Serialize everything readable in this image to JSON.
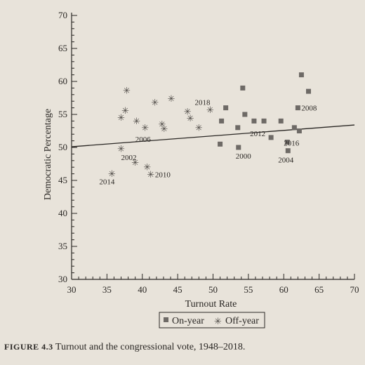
{
  "caption": {
    "figure_label": "FIGURE 4.3",
    "text": "Turnout and the congressional vote, 1948–2018."
  },
  "chart_data": {
    "type": "scatter",
    "xlabel": "Turnout Rate",
    "ylabel": "Democratic Percentage",
    "xlim": [
      30,
      70
    ],
    "ylim": [
      30,
      70
    ],
    "x_ticks": [
      30,
      35,
      40,
      45,
      50,
      55,
      60,
      65,
      70
    ],
    "y_ticks": [
      30,
      35,
      40,
      45,
      50,
      55,
      60,
      65,
      70
    ],
    "legend": {
      "position": "bottom-center",
      "entries": [
        "On-year",
        "Off-year"
      ]
    },
    "series": [
      {
        "name": "On-year",
        "marker": "square",
        "points": [
          {
            "x": 51.0,
            "y": 50.5,
            "label": ""
          },
          {
            "x": 51.2,
            "y": 54.0,
            "label": ""
          },
          {
            "x": 51.8,
            "y": 56.0,
            "label": ""
          },
          {
            "x": 53.5,
            "y": 53.0,
            "label": ""
          },
          {
            "x": 53.6,
            "y": 50.0,
            "label": "2000"
          },
          {
            "x": 54.2,
            "y": 59.0,
            "label": ""
          },
          {
            "x": 54.5,
            "y": 55.0,
            "label": ""
          },
          {
            "x": 55.8,
            "y": 54.0,
            "label": ""
          },
          {
            "x": 57.2,
            "y": 54.0,
            "label": ""
          },
          {
            "x": 58.2,
            "y": 51.5,
            "label": "2012"
          },
          {
            "x": 59.6,
            "y": 54.0,
            "label": ""
          },
          {
            "x": 60.5,
            "y": 50.8,
            "label": "2016"
          },
          {
            "x": 60.6,
            "y": 49.5,
            "label": "2004"
          },
          {
            "x": 61.5,
            "y": 53.0,
            "label": ""
          },
          {
            "x": 62.2,
            "y": 52.5,
            "label": ""
          },
          {
            "x": 62.0,
            "y": 56.0,
            "label": "2008"
          },
          {
            "x": 62.5,
            "y": 61.0,
            "label": ""
          },
          {
            "x": 63.5,
            "y": 58.5,
            "label": ""
          }
        ]
      },
      {
        "name": "Off-year",
        "marker": "asterisk",
        "points": [
          {
            "x": 35.7,
            "y": 46.0,
            "label": "2014"
          },
          {
            "x": 37.0,
            "y": 49.8,
            "label": "2002"
          },
          {
            "x": 37.0,
            "y": 54.5,
            "label": ""
          },
          {
            "x": 37.6,
            "y": 55.6,
            "label": ""
          },
          {
            "x": 37.8,
            "y": 58.6,
            "label": ""
          },
          {
            "x": 39.0,
            "y": 47.7,
            "label": ""
          },
          {
            "x": 39.2,
            "y": 54.0,
            "label": ""
          },
          {
            "x": 40.4,
            "y": 53.0,
            "label": "2006"
          },
          {
            "x": 40.7,
            "y": 47.0,
            "label": ""
          },
          {
            "x": 41.2,
            "y": 45.9,
            "label": "2010"
          },
          {
            "x": 41.8,
            "y": 56.8,
            "label": ""
          },
          {
            "x": 42.8,
            "y": 53.5,
            "label": ""
          },
          {
            "x": 43.1,
            "y": 52.8,
            "label": ""
          },
          {
            "x": 44.1,
            "y": 57.4,
            "label": ""
          },
          {
            "x": 46.4,
            "y": 55.4,
            "label": ""
          },
          {
            "x": 46.8,
            "y": 54.4,
            "label": ""
          },
          {
            "x": 48.0,
            "y": 53.0,
            "label": ""
          },
          {
            "x": 49.6,
            "y": 55.7,
            "label": "2018"
          }
        ]
      }
    ],
    "trend_line": {
      "x": [
        30,
        70
      ],
      "y": [
        50.1,
        53.4
      ]
    }
  }
}
